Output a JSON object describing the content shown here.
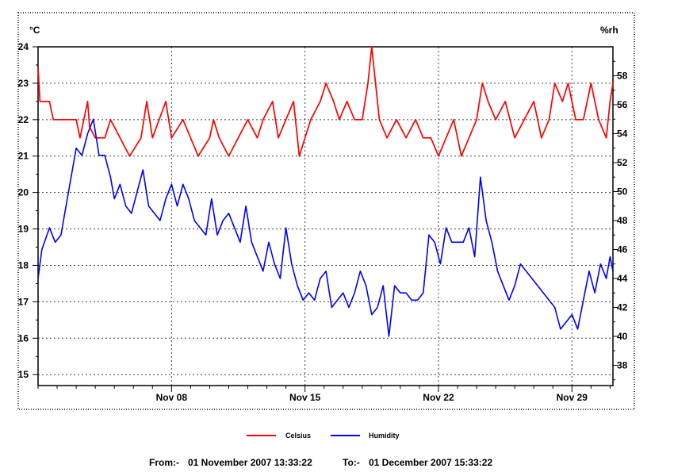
{
  "chart_data": {
    "type": "line",
    "left_unit": "°C",
    "right_unit": "%rh",
    "y_left": {
      "min": 14.7,
      "max": 24.0,
      "ticks": [
        15,
        16,
        17,
        18,
        19,
        20,
        21,
        22,
        23,
        24
      ]
    },
    "y_right": {
      "min": 36.6,
      "max": 60.0,
      "ticks": [
        38,
        40,
        42,
        44,
        46,
        48,
        50,
        52,
        54,
        56,
        58
      ]
    },
    "x": {
      "min": 1,
      "max": 31.15,
      "ticks": [
        8,
        15,
        22,
        29
      ],
      "tick_labels": [
        "Nov 08",
        "Nov 15",
        "Nov 22",
        "Nov 29"
      ]
    },
    "grid": true,
    "legend_position": "bottom",
    "series": [
      {
        "name": "Celsius",
        "axis": "left",
        "color": "#ff0000",
        "points": [
          [
            1.0,
            23.4
          ],
          [
            1.1,
            22.5
          ],
          [
            1.6,
            22.5
          ],
          [
            1.8,
            22.0
          ],
          [
            2.4,
            22.0
          ],
          [
            3.0,
            22.0
          ],
          [
            3.2,
            21.5
          ],
          [
            3.4,
            22.0
          ],
          [
            3.6,
            22.5
          ],
          [
            3.7,
            21.8
          ],
          [
            4.0,
            21.5
          ],
          [
            4.5,
            21.5
          ],
          [
            4.8,
            22.0
          ],
          [
            5.3,
            21.5
          ],
          [
            5.8,
            21.0
          ],
          [
            6.4,
            21.5
          ],
          [
            6.7,
            22.5
          ],
          [
            7.0,
            21.5
          ],
          [
            7.7,
            22.5
          ],
          [
            8.0,
            21.5
          ],
          [
            8.6,
            22.0
          ],
          [
            9.0,
            21.5
          ],
          [
            9.4,
            21.0
          ],
          [
            10.0,
            21.5
          ],
          [
            10.2,
            22.0
          ],
          [
            10.5,
            21.5
          ],
          [
            11.0,
            21.0
          ],
          [
            11.5,
            21.5
          ],
          [
            12.0,
            22.0
          ],
          [
            12.5,
            21.5
          ],
          [
            12.8,
            22.0
          ],
          [
            13.3,
            22.5
          ],
          [
            13.6,
            21.5
          ],
          [
            14.0,
            22.0
          ],
          [
            14.4,
            22.5
          ],
          [
            14.7,
            21.0
          ],
          [
            15.0,
            21.5
          ],
          [
            15.3,
            22.0
          ],
          [
            15.8,
            22.5
          ],
          [
            16.1,
            23.0
          ],
          [
            16.5,
            22.5
          ],
          [
            16.8,
            22.0
          ],
          [
            17.2,
            22.5
          ],
          [
            17.6,
            22.0
          ],
          [
            18.0,
            22.0
          ],
          [
            18.3,
            23.0
          ],
          [
            18.5,
            24.0
          ],
          [
            18.7,
            23.0
          ],
          [
            18.9,
            22.0
          ],
          [
            19.3,
            21.5
          ],
          [
            19.8,
            22.0
          ],
          [
            20.3,
            21.5
          ],
          [
            20.8,
            22.0
          ],
          [
            21.2,
            21.5
          ],
          [
            21.6,
            21.5
          ],
          [
            22.0,
            21.0
          ],
          [
            22.4,
            21.5
          ],
          [
            22.8,
            22.0
          ],
          [
            23.2,
            21.0
          ],
          [
            23.6,
            21.5
          ],
          [
            24.0,
            22.0
          ],
          [
            24.3,
            23.0
          ],
          [
            24.6,
            22.5
          ],
          [
            25.0,
            22.0
          ],
          [
            25.5,
            22.5
          ],
          [
            26.0,
            21.5
          ],
          [
            26.5,
            22.0
          ],
          [
            27.0,
            22.5
          ],
          [
            27.4,
            21.5
          ],
          [
            27.8,
            22.0
          ],
          [
            28.1,
            23.0
          ],
          [
            28.5,
            22.5
          ],
          [
            28.8,
            23.0
          ],
          [
            29.2,
            22.0
          ],
          [
            29.6,
            22.0
          ],
          [
            30.0,
            23.0
          ],
          [
            30.4,
            22.0
          ],
          [
            30.8,
            21.5
          ],
          [
            31.0,
            22.5
          ],
          [
            31.15,
            23.0
          ]
        ]
      },
      {
        "name": "Humidity",
        "axis": "right",
        "color": "#0000ff",
        "points": [
          [
            1.0,
            44.0
          ],
          [
            1.2,
            46.0
          ],
          [
            1.6,
            47.5
          ],
          [
            1.9,
            46.5
          ],
          [
            2.2,
            47.0
          ],
          [
            2.6,
            50.0
          ],
          [
            3.0,
            53.0
          ],
          [
            3.3,
            52.5
          ],
          [
            3.6,
            54.0
          ],
          [
            3.9,
            55.0
          ],
          [
            4.2,
            52.5
          ],
          [
            4.5,
            52.5
          ],
          [
            4.8,
            51.0
          ],
          [
            5.0,
            49.5
          ],
          [
            5.3,
            50.5
          ],
          [
            5.6,
            49.0
          ],
          [
            5.9,
            48.5
          ],
          [
            6.2,
            50.0
          ],
          [
            6.5,
            51.5
          ],
          [
            6.8,
            49.0
          ],
          [
            7.1,
            48.5
          ],
          [
            7.4,
            48.0
          ],
          [
            7.7,
            49.5
          ],
          [
            8.0,
            50.5
          ],
          [
            8.3,
            49.0
          ],
          [
            8.6,
            50.5
          ],
          [
            8.9,
            49.5
          ],
          [
            9.2,
            48.0
          ],
          [
            9.5,
            47.5
          ],
          [
            9.8,
            47.0
          ],
          [
            10.1,
            49.5
          ],
          [
            10.4,
            47.0
          ],
          [
            10.7,
            48.0
          ],
          [
            11.0,
            48.5
          ],
          [
            11.3,
            47.5
          ],
          [
            11.6,
            46.5
          ],
          [
            11.9,
            49.0
          ],
          [
            12.2,
            46.5
          ],
          [
            12.5,
            45.5
          ],
          [
            12.8,
            44.5
          ],
          [
            13.1,
            46.5
          ],
          [
            13.4,
            45.0
          ],
          [
            13.7,
            44.0
          ],
          [
            14.0,
            47.5
          ],
          [
            14.3,
            45.0
          ],
          [
            14.6,
            43.5
          ],
          [
            14.9,
            42.5
          ],
          [
            15.2,
            43.0
          ],
          [
            15.5,
            42.5
          ],
          [
            15.8,
            44.0
          ],
          [
            16.1,
            44.5
          ],
          [
            16.4,
            42.0
          ],
          [
            16.7,
            42.5
          ],
          [
            17.0,
            43.0
          ],
          [
            17.3,
            42.0
          ],
          [
            17.6,
            43.0
          ],
          [
            17.9,
            44.5
          ],
          [
            18.2,
            43.5
          ],
          [
            18.5,
            41.5
          ],
          [
            18.8,
            42.0
          ],
          [
            19.1,
            43.5
          ],
          [
            19.4,
            40.0
          ],
          [
            19.7,
            43.5
          ],
          [
            20.0,
            43.0
          ],
          [
            20.3,
            43.0
          ],
          [
            20.6,
            42.5
          ],
          [
            20.9,
            42.5
          ],
          [
            21.2,
            43.0
          ],
          [
            21.5,
            47.0
          ],
          [
            21.8,
            46.5
          ],
          [
            22.1,
            45.0
          ],
          [
            22.4,
            47.5
          ],
          [
            22.7,
            46.5
          ],
          [
            23.0,
            46.5
          ],
          [
            23.3,
            46.5
          ],
          [
            23.6,
            47.5
          ],
          [
            23.9,
            45.5
          ],
          [
            24.2,
            51.0
          ],
          [
            24.5,
            48.0
          ],
          [
            24.8,
            46.5
          ],
          [
            25.1,
            44.5
          ],
          [
            25.4,
            43.5
          ],
          [
            25.7,
            42.5
          ],
          [
            26.0,
            43.5
          ],
          [
            26.3,
            45.0
          ],
          [
            26.6,
            44.5
          ],
          [
            26.9,
            44.0
          ],
          [
            27.2,
            43.5
          ],
          [
            27.5,
            43.0
          ],
          [
            27.8,
            42.5
          ],
          [
            28.1,
            42.0
          ],
          [
            28.4,
            40.5
          ],
          [
            28.7,
            41.0
          ],
          [
            29.0,
            41.5
          ],
          [
            29.3,
            40.5
          ],
          [
            29.6,
            42.5
          ],
          [
            29.9,
            44.5
          ],
          [
            30.2,
            43.0
          ],
          [
            30.5,
            45.0
          ],
          [
            30.8,
            44.0
          ],
          [
            31.0,
            45.5
          ],
          [
            31.15,
            44.5
          ]
        ]
      }
    ],
    "footer": {
      "from_label": "From:-",
      "from_value": "01 November 2007 13:33:22",
      "to_label": "To:-",
      "to_value": "01 December 2007 15:33:22"
    }
  }
}
